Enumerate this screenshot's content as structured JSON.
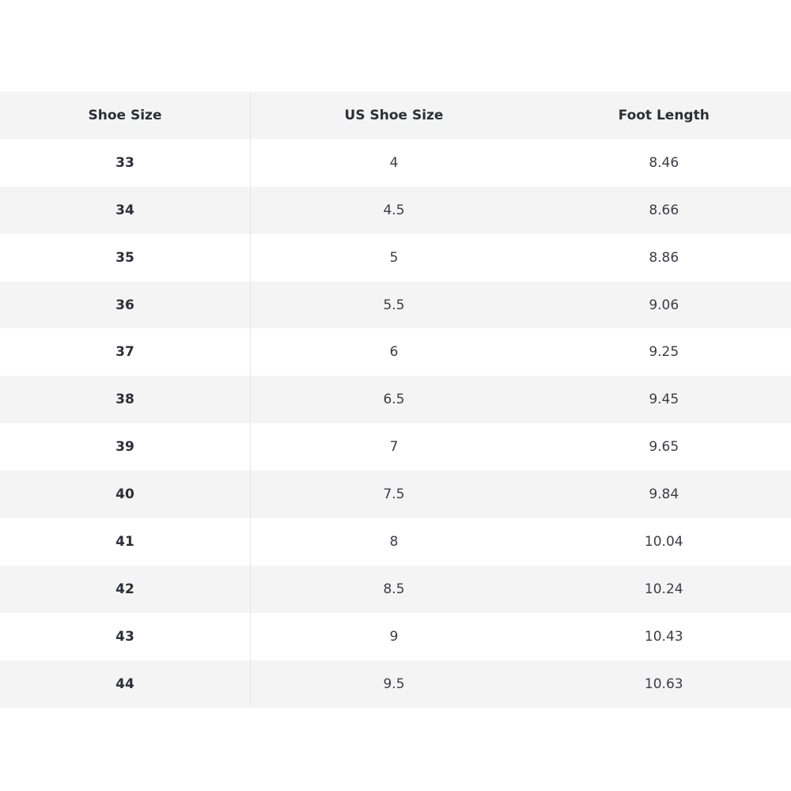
{
  "table": {
    "header": [
      "Shoe Size",
      "US Shoe Size",
      "Foot Length"
    ],
    "rows": [
      [
        "33",
        "4",
        "8.46"
      ],
      [
        "34",
        "4.5",
        "8.66"
      ],
      [
        "35",
        "5",
        "8.86"
      ],
      [
        "36",
        "5.5",
        "9.06"
      ],
      [
        "37",
        "6",
        "9.25"
      ],
      [
        "38",
        "6.5",
        "9.45"
      ],
      [
        "39",
        "7",
        "9.65"
      ],
      [
        "40",
        "7.5",
        "9.84"
      ],
      [
        "41",
        "8",
        "10.04"
      ],
      [
        "42",
        "8.5",
        "10.24"
      ],
      [
        "43",
        "9",
        "10.43"
      ],
      [
        "44",
        "9.5",
        "10.63"
      ]
    ]
  }
}
